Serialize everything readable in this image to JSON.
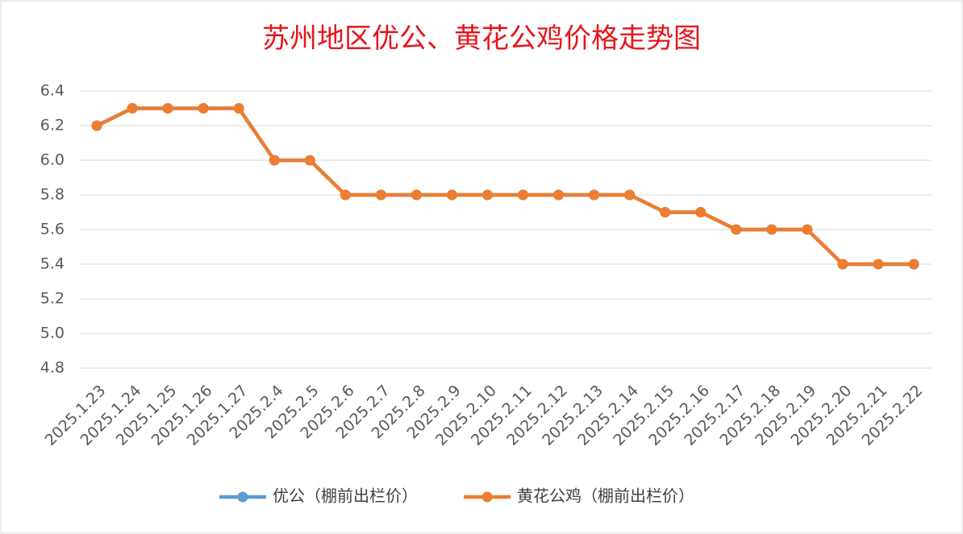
{
  "chart_data": {
    "type": "line",
    "title": "苏州地区优公、黄花公鸡价格走势图",
    "categories": [
      "2025.1.23",
      "2025.1.24",
      "2025.1.25",
      "2025.1.26",
      "2025.1.27",
      "2025.2.4",
      "2025.2.5",
      "2025.2.6",
      "2025.2.7",
      "2025.2.8",
      "2025.2.9",
      "2025.2.10",
      "2025.2.11",
      "2025.2.12",
      "2025.2.13",
      "2025.2.14",
      "2025.2.15",
      "2025.2.16",
      "2025.2.17",
      "2025.2.18",
      "2025.2.19",
      "2025.2.20",
      "2025.2.21",
      "2025.2.22"
    ],
    "series": [
      {
        "name": "优公（棚前出栏价）",
        "color": "#5b9bd5",
        "values": [
          6.2,
          6.3,
          6.3,
          6.3,
          6.3,
          6.0,
          6.0,
          5.8,
          5.8,
          5.8,
          5.8,
          5.8,
          5.8,
          5.8,
          5.8,
          5.8,
          5.7,
          5.7,
          5.6,
          5.6,
          5.6,
          5.4,
          5.4,
          5.4
        ]
      },
      {
        "name": "黄花公鸡（棚前出栏价）",
        "color": "#ed7d31",
        "values": [
          6.2,
          6.3,
          6.3,
          6.3,
          6.3,
          6.0,
          6.0,
          5.8,
          5.8,
          5.8,
          5.8,
          5.8,
          5.8,
          5.8,
          5.8,
          5.8,
          5.7,
          5.7,
          5.6,
          5.6,
          5.6,
          5.4,
          5.4,
          5.4
        ]
      }
    ],
    "ylim": [
      4.8,
      6.4
    ],
    "yticks": [
      4.8,
      {
        "value": 5,
        "label": "5.0"
      },
      5.2,
      5.4,
      5.6,
      5.8,
      {
        "value": 6,
        "label": "6.0"
      },
      6.2,
      6.4
    ],
    "grid": true,
    "legend": "bottom"
  }
}
